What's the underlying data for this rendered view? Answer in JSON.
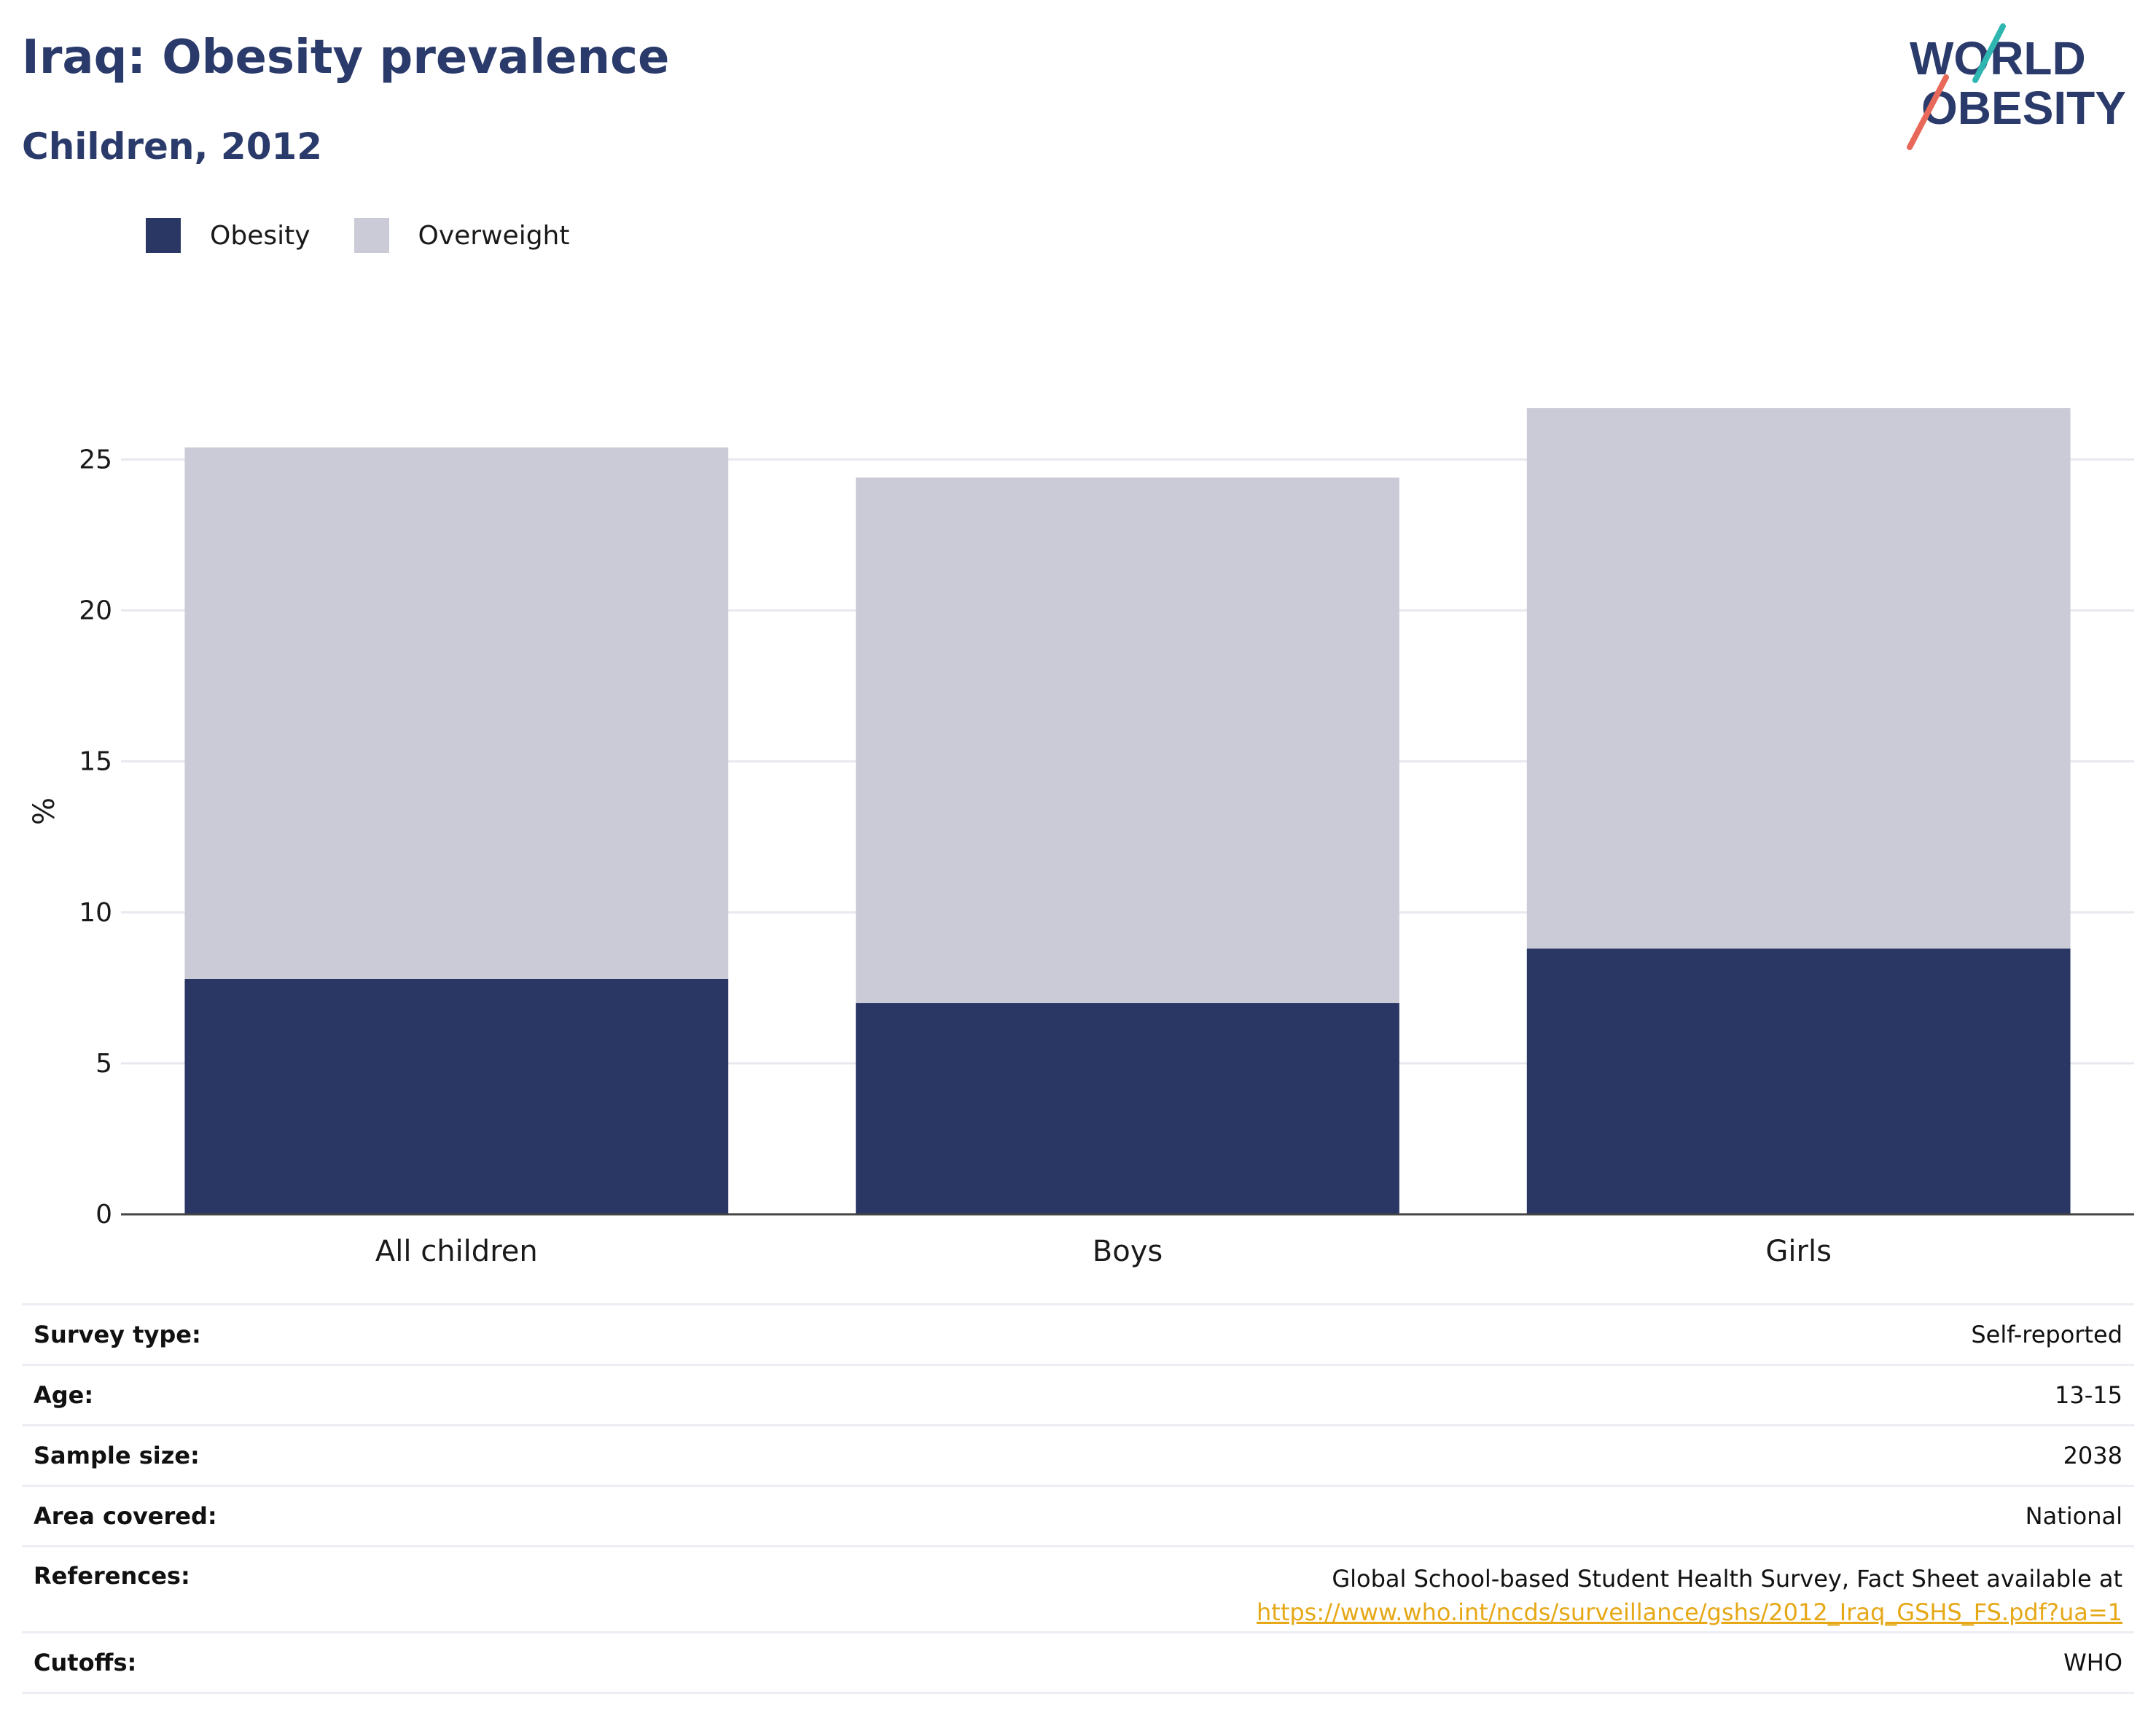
{
  "header": {
    "title": "Iraq: Obesity prevalence",
    "subtitle": "Children, 2012"
  },
  "logo": {
    "line1": "WORLD",
    "line2": "OBESITY"
  },
  "colors": {
    "obesity": "#2a3764",
    "overweight": "#cacbd7",
    "title": "#2a3a6a",
    "link": "#e6a817",
    "logo_teal": "#2fb6b0",
    "logo_coral": "#e8695a"
  },
  "chart_data": {
    "type": "bar",
    "stacked": true,
    "categories": [
      "All children",
      "Boys",
      "Girls"
    ],
    "series": [
      {
        "name": "Obesity",
        "values": [
          7.8,
          7.0,
          8.8
        ]
      },
      {
        "name": "Overweight",
        "values": [
          17.6,
          17.4,
          17.9
        ]
      }
    ],
    "ylabel": "%",
    "ylim": [
      0,
      26.7
    ],
    "yticks": [
      0,
      5,
      10,
      15,
      20,
      25
    ],
    "grid": true,
    "legend": "top-left"
  },
  "info_table": [
    {
      "label": "Survey type:",
      "value": "Self-reported"
    },
    {
      "label": "Age:",
      "value": "13-15"
    },
    {
      "label": "Sample size:",
      "value": "2038"
    },
    {
      "label": "Area covered:",
      "value": "National"
    },
    {
      "label": "References:",
      "value": "Global School-based Student Health Survey, Fact Sheet available at",
      "link": "https://www.who.int/ncds/surveillance/gshs/2012_Iraq_GSHS_FS.pdf?ua=1"
    },
    {
      "label": "Cutoffs:",
      "value": "WHO"
    }
  ]
}
